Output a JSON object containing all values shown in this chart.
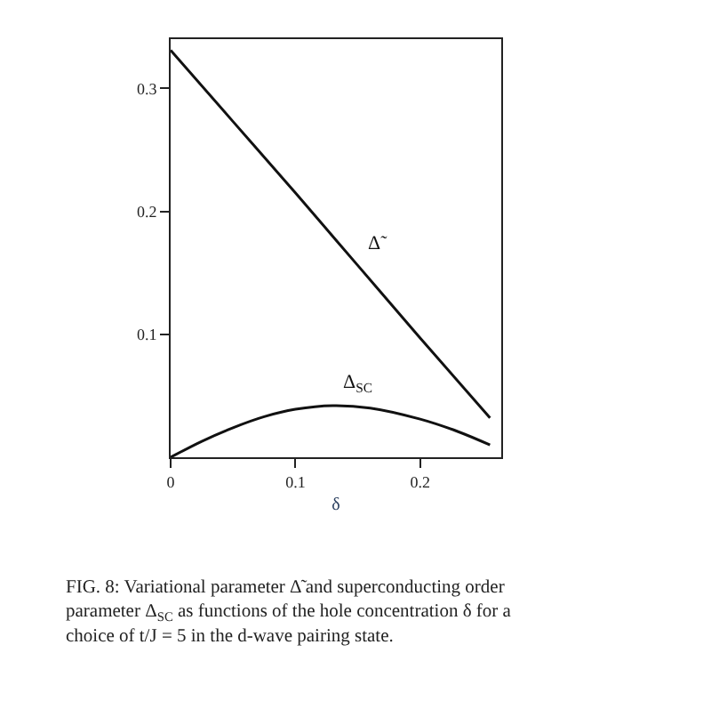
{
  "chart_data": {
    "type": "line",
    "xlabel": "δ",
    "series": [
      {
        "name": "Δ̃",
        "color": "#111111",
        "x": [
          0,
          0.05,
          0.1,
          0.15,
          0.2,
          0.256
        ],
        "values": [
          0.331,
          0.273,
          0.215,
          0.156,
          0.097,
          0.032
        ]
      },
      {
        "name": "Δ$_{SC}$",
        "color": "#111111",
        "x": [
          0,
          0.025,
          0.05,
          0.075,
          0.1,
          0.13,
          0.16,
          0.2,
          0.23,
          0.256
        ],
        "values": [
          0,
          0.013,
          0.024,
          0.033,
          0.039,
          0.042,
          0.04,
          0.031,
          0.021,
          0.01
        ]
      }
    ],
    "xlim": [
      0,
      0.265
    ],
    "ylim": [
      0,
      0.34
    ],
    "xticks": [
      0,
      0.1,
      0.2
    ],
    "yticks": [
      0.1,
      0.2,
      0.3
    ],
    "legend": false,
    "marker": "none",
    "line_style": "solid",
    "annotations": [
      "FIG. 8: Variational parameter Δ̃ and superconducting order parameter Δ$_{SC}$ as functions of the hole concentration δ for a choice of t/J = 5 in the d-wave pairing state."
    ]
  }
}
